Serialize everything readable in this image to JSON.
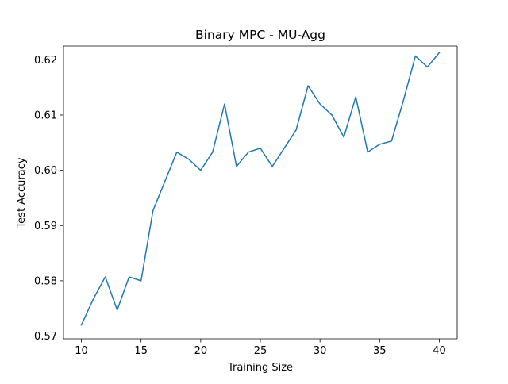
{
  "chart_data": {
    "type": "line",
    "title": "Binary MPC - MU-Agg",
    "xlabel": "Training Size",
    "ylabel": "Test Accuracy",
    "xlim": [
      8.5,
      41.5
    ],
    "ylim": [
      0.5695,
      0.6225
    ],
    "xticks": [
      10,
      15,
      20,
      25,
      30,
      35,
      40
    ],
    "xtick_labels": [
      "10",
      "15",
      "20",
      "25",
      "30",
      "35",
      "40"
    ],
    "yticks": [
      0.57,
      0.58,
      0.59,
      0.6,
      0.61,
      0.62
    ],
    "ytick_labels": [
      "0.57",
      "0.58",
      "0.59",
      "0.60",
      "0.61",
      "0.62"
    ],
    "grid": false,
    "legend": "none",
    "series": [
      {
        "color": "#1f77b4",
        "x": [
          10,
          11,
          12,
          13,
          14,
          15,
          16,
          17,
          18,
          19,
          20,
          21,
          22,
          23,
          24,
          25,
          26,
          27,
          28,
          29,
          30,
          31,
          32,
          33,
          34,
          35,
          36,
          37,
          38,
          39,
          40
        ],
        "y": [
          0.572,
          0.5767,
          0.5807,
          0.5747,
          0.5807,
          0.58,
          0.5927,
          0.598,
          0.6033,
          0.602,
          0.6,
          0.6033,
          0.612,
          0.6007,
          0.6033,
          0.604,
          0.6007,
          0.604,
          0.6073,
          0.6153,
          0.612,
          0.61,
          0.606,
          0.6133,
          0.6033,
          0.6047,
          0.6053,
          0.6127,
          0.6207,
          0.6187,
          0.6213
        ]
      }
    ]
  }
}
